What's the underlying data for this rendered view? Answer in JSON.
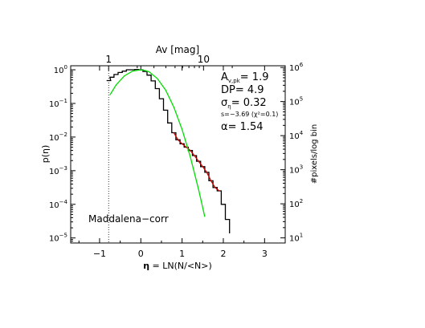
{
  "chart_data": {
    "type": "line",
    "region_label": "Maddalena−corr",
    "xlabel": {
      "symbol": "η",
      "text": " = LN(N/<N>)"
    },
    "ylabel": "p(η)",
    "y2label": "#pixels/log bin",
    "top_axis_label": "Av [mag]",
    "xlim": [
      -1.7,
      3.5
    ],
    "ylim": [
      -5.15,
      0.12
    ],
    "xticks": [
      -1,
      0,
      1,
      2,
      3
    ],
    "xtick_labels": [
      "−1",
      "0",
      "1",
      "2",
      "3"
    ],
    "yticks": [
      0,
      -1,
      -2,
      -3,
      -4,
      -5
    ],
    "ytick_labels": [
      {
        "base": "10",
        "exp": "0"
      },
      {
        "base": "10",
        "exp": "−1"
      },
      {
        "base": "10",
        "exp": "−2"
      },
      {
        "base": "10",
        "exp": "−3"
      },
      {
        "base": "10",
        "exp": "−4"
      },
      {
        "base": "10",
        "exp": "−5"
      }
    ],
    "y2ticks": [
      6,
      5,
      4,
      3,
      2,
      1
    ],
    "y2tick_labels": [
      {
        "base": "10",
        "exp": "6"
      },
      {
        "base": "10",
        "exp": "5"
      },
      {
        "base": "10",
        "exp": "4"
      },
      {
        "base": "10",
        "exp": "3"
      },
      {
        "base": "10",
        "exp": "2"
      },
      {
        "base": "10",
        "exp": "1"
      }
    ],
    "top_ticks": [
      {
        "eta": -0.78,
        "label": "1"
      },
      {
        "eta": 1.52,
        "label": "10"
      }
    ],
    "threshold_eta": -0.78,
    "annotations": [
      {
        "id": "ak",
        "main": "A",
        "sub": "v,pk",
        "rest": "= 1.9"
      },
      {
        "id": "dp",
        "main": "DP",
        "sub": "",
        "rest": "= 4.9"
      },
      {
        "id": "sigma",
        "main": "σ",
        "sub": "η",
        "rest": "= 0.32"
      },
      {
        "id": "slope",
        "main": "s=−3.69 (χ²=0.1)",
        "sub": "",
        "rest": ""
      },
      {
        "id": "alpha",
        "main": "α",
        "sub": "",
        "rest": "= 1.54"
      }
    ],
    "series": [
      {
        "color": "#000000",
        "style": "step",
        "x": [
          -0.78,
          -0.7,
          -0.6,
          -0.5,
          -0.4,
          -0.3,
          -0.2,
          -0.1,
          0.0,
          0.1,
          0.2,
          0.3,
          0.4,
          0.5,
          0.6,
          0.7,
          0.8,
          0.9,
          1.0,
          1.1,
          1.2,
          1.3,
          1.4,
          1.5,
          1.6,
          1.7,
          1.8,
          1.9,
          2.0,
          2.1
        ],
        "y": [
          -0.32,
          -0.22,
          -0.14,
          -0.08,
          -0.04,
          0.0,
          0.0,
          0.01,
          0.0,
          -0.05,
          -0.16,
          -0.33,
          -0.56,
          -0.86,
          -1.2,
          -1.58,
          -1.87,
          -2.08,
          -2.2,
          -2.3,
          -2.4,
          -2.55,
          -2.72,
          -2.88,
          -3.05,
          -3.3,
          -3.5,
          -3.6,
          -4.0,
          -4.45
        ]
      },
      {
        "color": "#cc0000",
        "style": "line",
        "x": [
          0.8,
          0.9,
          1.0,
          1.1,
          1.2,
          1.3,
          1.4,
          1.5,
          1.6,
          1.7,
          1.8,
          1.9
        ],
        "y": [
          -1.87,
          -2.08,
          -2.2,
          -2.3,
          -2.4,
          -2.55,
          -2.72,
          -2.88,
          -3.05,
          -3.3,
          -3.5,
          -3.6
        ]
      },
      {
        "color": "#00dd00",
        "style": "line",
        "x": [
          -0.75,
          -0.6,
          -0.4,
          -0.2,
          0.0,
          0.1,
          0.2,
          0.4,
          0.6,
          0.8,
          1.0,
          1.2,
          1.4,
          1.55
        ],
        "y": [
          -0.75,
          -0.45,
          -0.18,
          -0.04,
          0.0,
          -0.02,
          -0.06,
          -0.26,
          -0.6,
          -1.11,
          -1.77,
          -2.59,
          -3.56,
          -4.37
        ]
      }
    ]
  }
}
